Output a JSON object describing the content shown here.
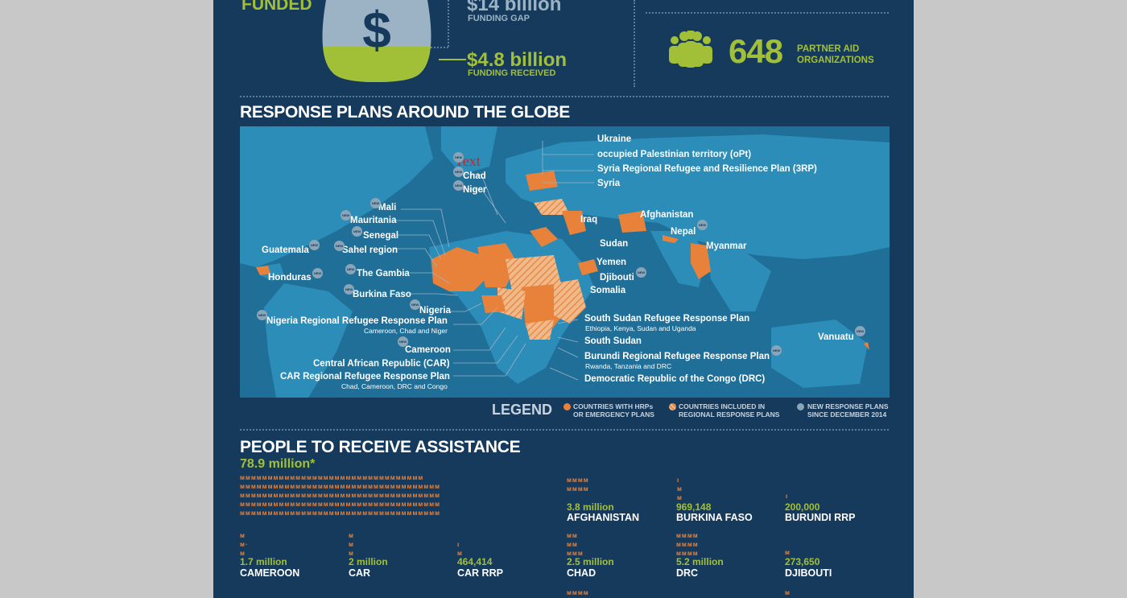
{
  "funding": {
    "funded_label": "FUNDED",
    "gap_value": "$14 billion",
    "gap_label": "FUNDING GAP",
    "received_value": "$4.8 billion",
    "received_label": "FUNDING RECEIVED",
    "dollar_symbol": "$"
  },
  "partners": {
    "count": "648",
    "label_line1": "PARTNER AID",
    "label_line2": "ORGANIZATIONS"
  },
  "map_section": {
    "title": "RESPONSE PLANS AROUND THE GLOBE",
    "stray_text": "Text",
    "labels": {
      "ukraine": "Ukraine",
      "opt": "occupied Palestinian territory (oPt)",
      "syria_3rp": "Syria Regional Refugee and Resilience Plan (3RP)",
      "syria": "Syria",
      "chad": "Chad",
      "niger": "Niger",
      "mali": "Mali",
      "mauritania": "Mauritania",
      "senegal": "Senegal",
      "sahel": "Sahel region",
      "guatemala": "Guatemala",
      "honduras": "Honduras",
      "gambia": "The Gambia",
      "burkina": "Burkina Faso",
      "nigeria": "Nigeria",
      "nigeria_rrp": "Nigeria Regional Refugee Response Plan",
      "nigeria_rrp_sub": "Cameroon, Chad and Niger",
      "cameroon": "Cameroon",
      "car": "Central African Republic (CAR)",
      "car_rrp": "CAR Regional Refugee Response Plan",
      "car_rrp_sub": "Chad, Cameroon, DRC and Congo",
      "iraq": "Iraq",
      "afghanistan": "Afghanistan",
      "nepal": "Nepal",
      "myanmar": "Myanmar",
      "sudan": "Sudan",
      "yemen": "Yemen",
      "djibouti": "Djibouti",
      "somalia": "Somalia",
      "ss_rrp": "South Sudan Refugee Response Plan",
      "ss_rrp_sub": "Ethiopia, Kenya, Sudan and Uganda",
      "south_sudan": "South Sudan",
      "burundi_rrp": "Burundi Regional Refugee Response Plan",
      "burundi_rrp_sub": "Rwanda, Tanzania and DRC",
      "drc": "Democratic Republic of the Congo (DRC)",
      "vanuatu": "Vanuatu"
    },
    "new_badge": "NEW",
    "legend": {
      "title": "LEGEND",
      "item1_line1": "COUNTRIES WITH HRPs",
      "item1_line2": "OR EMERGENCY PLANS",
      "item2_line1": "COUNTRIES INCLUDED IN",
      "item2_line2": "REGIONAL RESPONSE PLANS",
      "item3_line1": "NEW RESPONSE PLANS",
      "item3_line2": "SINCE DECEMBER 2014"
    }
  },
  "assistance": {
    "title": "PEOPLE TO RECEIVE ASSISTANCE",
    "total": "78.9 million*",
    "countries": [
      {
        "value": "3.8 million",
        "name": "AFGHANISTAN"
      },
      {
        "value": "969,148",
        "name": "BURKINA FASO"
      },
      {
        "value": "200,000",
        "name": "BURUNDI RRP"
      },
      {
        "value": "1.7 million",
        "name": "CAMEROON"
      },
      {
        "value": "2 million",
        "name": "CAR"
      },
      {
        "value": "464,414",
        "name": "CAR RRP"
      },
      {
        "value": "2.5 million",
        "name": "CHAD"
      },
      {
        "value": "5.2 million",
        "name": "DRC"
      },
      {
        "value": "273,650",
        "name": "DJIBOUTI"
      }
    ]
  },
  "colors": {
    "background": "#163a5c",
    "accent_green": "#a2c037",
    "map_orange": "#e8823a",
    "ocean": "#1f6f98",
    "land": "#2b8db8"
  }
}
